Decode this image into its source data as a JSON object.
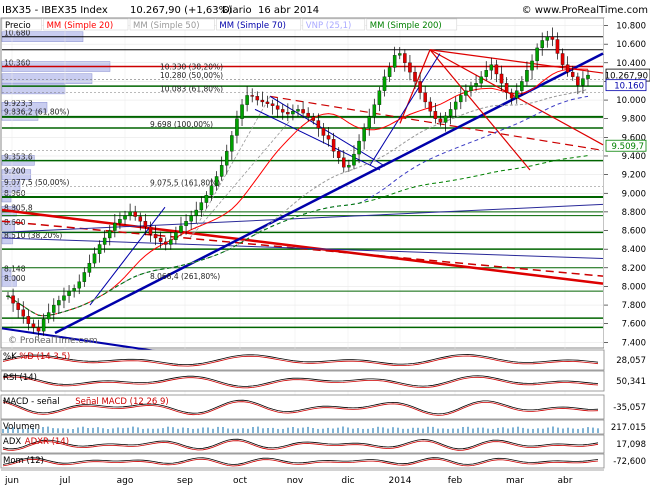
{
  "header": {
    "symbol": "IBX35 - IBEX35 Index",
    "last": "10.267,90 (+1,63%)",
    "period": "Diario",
    "date": "16 abr 2014",
    "site": "© www.ProRealTime.com"
  },
  "watermark": "© ProRealTime.com",
  "legend": [
    {
      "name": "Precio",
      "color": "#000000"
    },
    {
      "name": "MM (Simple 20)",
      "color": "#ff0000"
    },
    {
      "name": "MM (Simple 50)",
      "color": "#999999"
    },
    {
      "name": "MM (Simple 70)",
      "color": "#0000aa"
    },
    {
      "name": "VNP (25,1)",
      "color": "#aaaaff"
    },
    {
      "name": "MM (Simple 200)",
      "color": "#008000"
    }
  ],
  "chart_data": {
    "type": "line",
    "y_axis_ticks": [
      "10.800",
      "10.600",
      "10.400",
      "10.200",
      "10.000",
      "9.800",
      "9.600",
      "9.400",
      "9.200",
      "9.000",
      "8.800",
      "8.600",
      "8.400",
      "8.200",
      "8.000",
      "7.800",
      "7.600",
      "7.400"
    ],
    "ylim": [
      7350,
      10870
    ],
    "x_axis_labels": [
      "jun",
      "jul",
      "ago",
      "sep",
      "oct",
      "nov",
      "dic",
      "2014",
      "feb",
      "mar",
      "abr"
    ],
    "price_label": "10.267,90",
    "ma_labels": [
      {
        "text": "10.160",
        "value": 10160,
        "color": "#0000aa"
      },
      {
        "text": "9.509,7",
        "value": 9510,
        "color": "#008000"
      }
    ],
    "volume_profile": [
      {
        "label": "10.680",
        "value": 10680,
        "len": 0.45
      },
      {
        "label": "10.360",
        "value": 10360,
        "len": 0.6
      },
      {
        "label": "",
        "value": 10230,
        "len": 0.5
      },
      {
        "label": "",
        "value": 10120,
        "len": 0.35
      },
      {
        "label": "9.923,3",
        "value": 9923,
        "len": 0.25
      },
      {
        "label": "9.836,2 (61,80%)",
        "value": 9836,
        "len": 0.2
      },
      {
        "label": "9.353,6",
        "value": 9354,
        "len": 0.18
      },
      {
        "label": "9.200",
        "value": 9200,
        "len": 0.16
      },
      {
        "label": "9.077,5 (50,00%)",
        "value": 9077,
        "len": 0.1
      },
      {
        "label": "8.960",
        "value": 8960,
        "len": 0.05
      },
      {
        "label": "8.805,8",
        "value": 8806,
        "len": 0.08
      },
      {
        "label": "8.600",
        "value": 8650,
        "len": 0.07
      },
      {
        "label": "8.510 (38,20%)",
        "value": 8510,
        "len": 0.06
      },
      {
        "label": "8.148",
        "value": 8148,
        "len": 0.05
      },
      {
        "label": "8.000",
        "value": 8050,
        "len": 0.08
      }
    ],
    "fib_labels": [
      {
        "text": "10.330 (38,20%)",
        "value": 10320
      },
      {
        "text": "10.280 (50,00%)",
        "value": 10225
      },
      {
        "text": "10.083 (61,80%)",
        "value": 10083
      },
      {
        "text": "9.698 (100,00%)",
        "value": 9698
      },
      {
        "text": "9.075,5 (161,80%)",
        "value": 9075
      },
      {
        "text": "8.068,4 (261,80%)",
        "value": 8068
      }
    ],
    "price_series": [
      7900,
      7820,
      7750,
      7680,
      7600,
      7560,
      7520,
      7650,
      7720,
      7800,
      7850,
      7900,
      7950,
      7980,
      8050,
      8150,
      8250,
      8350,
      8450,
      8520,
      8600,
      8680,
      8720,
      8760,
      8800,
      8750,
      8700,
      8640,
      8560,
      8520,
      8480,
      8450,
      8500,
      8580,
      8650,
      8700,
      8760,
      8820,
      8900,
      8980,
      9080,
      9180,
      9300,
      9450,
      9620,
      9800,
      9950,
      10050,
      10040,
      10000,
      9980,
      9960,
      9940,
      9900,
      9870,
      9850,
      9880,
      9900,
      9860,
      9820,
      9780,
      9700,
      9620,
      9580,
      9450,
      9380,
      9280,
      9300,
      9420,
      9560,
      9700,
      9820,
      9950,
      10100,
      10250,
      10350,
      10480,
      10500,
      10400,
      10300,
      10200,
      10080,
      9980,
      9880,
      9800,
      9760,
      9830,
      9900,
      9980,
      10050,
      10100,
      10150,
      10180,
      10250,
      10320,
      10380,
      10280,
      10180,
      10080,
      10020,
      10100,
      10200,
      10320,
      10420,
      10560,
      10640,
      10680,
      10650,
      10500,
      10380,
      10300,
      10250,
      10160,
      10230,
      10268
    ],
    "indicators": [
      {
        "name": "%K",
        "sub": "%D (14 3 5)",
        "value": "28,057"
      },
      {
        "name": "RSI (14)",
        "sub": "",
        "value": "50,341"
      },
      {
        "name": "MACD - señal",
        "sub": "Señal MACD (12 26 9)",
        "value": "-35,057"
      },
      {
        "name": "Volumen",
        "sub": "",
        "value": "217.015"
      },
      {
        "name": "ADX",
        "sub": "ADXR (14)",
        "value": "17,098"
      },
      {
        "name": "Mom (12)",
        "sub": "",
        "value": "-72,600"
      }
    ]
  }
}
